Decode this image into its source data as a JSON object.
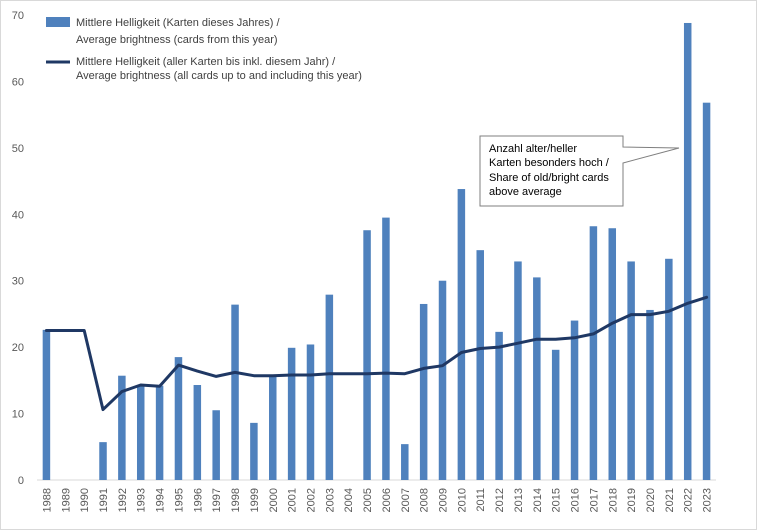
{
  "chart_data": {
    "type": "bar",
    "categories": [
      "1988",
      "1989",
      "1990",
      "1991",
      "1992",
      "1993",
      "1994",
      "1995",
      "1996",
      "1997",
      "1998",
      "1999",
      "2000",
      "2001",
      "2002",
      "2003",
      "2004",
      "2005",
      "2006",
      "2007",
      "2008",
      "2009",
      "2010",
      "2011",
      "2012",
      "2013",
      "2014",
      "2015",
      "2016",
      "2017",
      "2018",
      "2019",
      "2020",
      "2021",
      "2022",
      "2023"
    ],
    "series": [
      {
        "name": "Mittlere Helligkeit (Karten dieses Jahres) / Average brightness (cards from this year)",
        "type": "bar",
        "color": "#4f81bd",
        "values": [
          22.6,
          null,
          null,
          5.7,
          15.7,
          14.2,
          14.2,
          18.5,
          14.3,
          10.5,
          26.4,
          8.6,
          15.6,
          19.9,
          20.4,
          27.9,
          null,
          37.6,
          39.5,
          5.4,
          26.5,
          30.0,
          43.8,
          34.6,
          22.3,
          32.9,
          30.5,
          19.6,
          24.0,
          38.2,
          37.9,
          32.9,
          25.6,
          33.3,
          68.8,
          56.8
        ]
      },
      {
        "name": "Mittlere Helligkeit (aller Karten bis inkl. diesem Jahr) / Average brightness (all cards up to and including this year)",
        "type": "line",
        "color": "#1f3864",
        "values": [
          22.5,
          22.5,
          22.5,
          10.6,
          13.3,
          14.3,
          14.1,
          17.3,
          16.4,
          15.6,
          16.2,
          15.7,
          15.7,
          15.8,
          15.8,
          16.0,
          16.0,
          16.0,
          16.1,
          16.0,
          16.8,
          17.2,
          19.2,
          19.8,
          20.0,
          20.6,
          21.2,
          21.2,
          21.4,
          22.0,
          23.6,
          24.9,
          24.9,
          25.4,
          26.6,
          27.5
        ]
      }
    ],
    "ylim": [
      0,
      70
    ],
    "yticks": [
      0,
      10,
      20,
      30,
      40,
      50,
      60,
      70
    ],
    "grid": false,
    "legend_position": "top-left",
    "legend": [
      {
        "line1": "Mittlere Helligkeit (Karten dieses Jahres) /",
        "line2": "Average brightness (cards from this year)"
      },
      {
        "line1": "Mittlere Helligkeit (aller Karten bis inkl. diesem Jahr) /",
        "line2": "Average brightness (all cards up to and including this year)"
      }
    ],
    "annotation": {
      "lines": [
        "Anzahl alter/heller",
        "Karten besonders hoch /",
        "Share of old/bright cards",
        "above average"
      ],
      "points_to": "2022"
    }
  }
}
